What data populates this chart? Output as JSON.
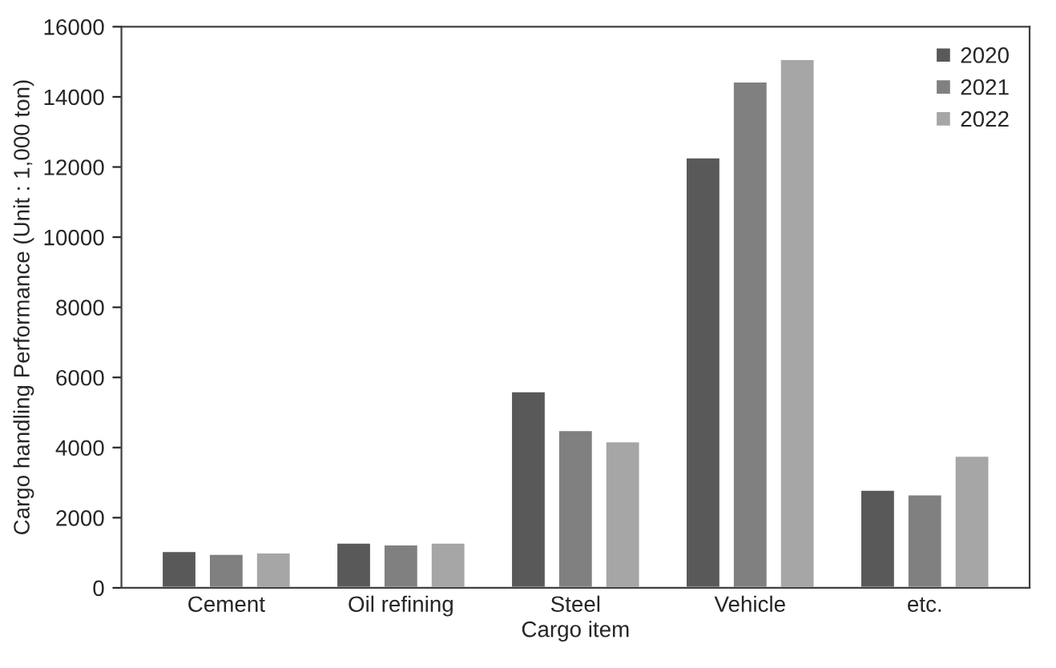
{
  "chart_data": {
    "type": "bar",
    "xlabel": "Cargo item",
    "ylabel": "Cargo handling Performance (Unit : 1,000 ton)",
    "categories": [
      "Cement",
      "Oil refining",
      "Steel",
      "Vehicle",
      "etc."
    ],
    "series": [
      {
        "name": "2020",
        "color": "#595959",
        "values": [
          1050,
          1290,
          5610,
          12280,
          2800
        ]
      },
      {
        "name": "2021",
        "color": "#808080",
        "values": [
          970,
          1240,
          4500,
          14440,
          2670
        ]
      },
      {
        "name": "2022",
        "color": "#a6a6a6",
        "values": [
          1010,
          1290,
          4180,
          15080,
          3770
        ]
      }
    ],
    "ylim": [
      0,
      16000
    ],
    "yticks": [
      0,
      2000,
      4000,
      6000,
      8000,
      10000,
      12000,
      14000,
      16000
    ],
    "grid": false,
    "legend": "top right"
  }
}
